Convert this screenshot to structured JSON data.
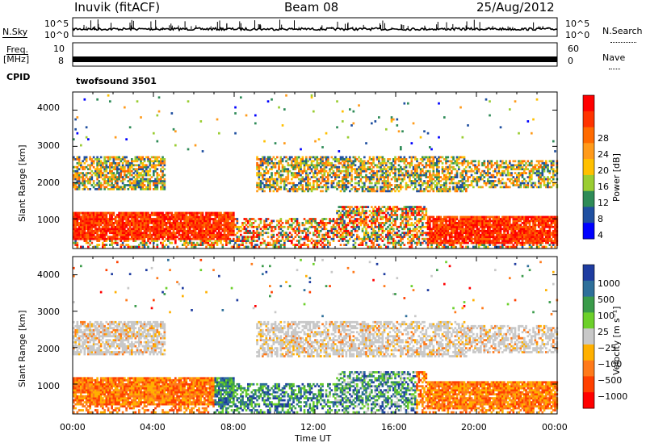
{
  "header": {
    "station": "Inuvik (fitACF)",
    "beam": "Beam 08",
    "date": "25/Aug/2012"
  },
  "side_labels": {
    "nsky": "N.Sky",
    "freq": "Freq.",
    "mhz": "[MHz]",
    "cpid": "CPID",
    "nsearch": "N.Search",
    "nave": "Nave",
    "program": "twofsound 3501"
  },
  "noise_axis": {
    "left_top": "10^5",
    "left_bottom": "10^0",
    "right_top": "10^5",
    "right_bottom": "10^0"
  },
  "freq_axis": {
    "left": [
      "10",
      "8"
    ],
    "right": [
      "60",
      "0"
    ]
  },
  "panels": {
    "ylabel": "Slant Range [km]",
    "yticks": [
      "4000",
      "3000",
      "2000",
      "1000"
    ],
    "xticks": [
      "00:00",
      "04:00",
      "08:00",
      "12:00",
      "16:00",
      "20:00",
      "00:00"
    ],
    "xlabel": "Time UT"
  },
  "power_bar": {
    "label": "Power [dB]",
    "ticks": [
      "28",
      "24",
      "20",
      "16",
      "12",
      "8",
      "4"
    ],
    "colors": [
      "#ff0000",
      "#ff3300",
      "#ff6a00",
      "#ff9a1a",
      "#ffc000",
      "#9acd32",
      "#2e8b57",
      "#1f4fa0",
      "#0000ff"
    ]
  },
  "velocity_bar": {
    "label": "Velocity [m s⁻¹]",
    "ticks": [
      "1000",
      "500",
      "100",
      "25",
      "−25",
      "−100",
      "−500",
      "−1000"
    ],
    "colors": [
      "#1e3ca0",
      "#2e6f9a",
      "#3a9b4a",
      "#6cd02a",
      "#c8c8c8",
      "#ffb000",
      "#ff7a1a",
      "#ff4000",
      "#ff0000"
    ]
  },
  "chart_data": [
    {
      "type": "line",
      "title": "Inuvik (fitACF) Beam 08 25/Aug/2012",
      "series": [
        {
          "name": "N.Sky"
        },
        {
          "name": "N.Search"
        }
      ],
      "ylim": [
        1,
        100000
      ],
      "x": [
        "00:00",
        "04:00",
        "08:00",
        "12:00",
        "16:00",
        "20:00",
        "00:00"
      ]
    },
    {
      "type": "line",
      "series": [
        {
          "name": "Freq. [MHz]"
        },
        {
          "name": "Nave"
        }
      ],
      "ylim_left": [
        8,
        10
      ],
      "ylim_right": [
        0,
        60
      ]
    },
    {
      "type": "heatmap",
      "title": "Power [dB]",
      "xlabel": "Time UT",
      "ylabel": "Slant Range [km]",
      "xlim": [
        "00:00",
        "24:00"
      ],
      "ylim": [
        180,
        4500
      ],
      "colorbar_ticks": [
        4,
        8,
        12,
        16,
        20,
        24,
        28
      ],
      "bands": [
        {
          "range_km": [
            400,
            1100
          ],
          "time_h": [
            0,
            8
          ],
          "power_db": 28
        },
        {
          "range_km": [
            1800,
            2700
          ],
          "time_h": [
            0,
            4
          ],
          "power_db": 16
        },
        {
          "range_km": [
            1700,
            2700
          ],
          "time_h": [
            9,
            19
          ],
          "power_db": 12
        },
        {
          "range_km": [
            300,
            1000
          ],
          "time_h": [
            17,
            24
          ],
          "power_db": 28
        }
      ]
    },
    {
      "type": "heatmap",
      "title": "Velocity [m s⁻¹]",
      "xlabel": "Time UT",
      "ylabel": "Slant Range [km]",
      "xlim": [
        "00:00",
        "24:00"
      ],
      "ylim": [
        180,
        4500
      ],
      "colorbar_ticks": [
        -1000,
        -500,
        -100,
        -25,
        25,
        100,
        500,
        1000
      ],
      "bands": [
        {
          "range_km": [
            400,
            1300
          ],
          "time_h": [
            0,
            7
          ],
          "velocity": -500
        },
        {
          "range_km": [
            1800,
            2500
          ],
          "time_h": [
            0,
            24
          ],
          "velocity": 0
        },
        {
          "range_km": [
            500,
            1400
          ],
          "time_h": [
            7,
            12
          ],
          "velocity": 800
        },
        {
          "range_km": [
            300,
            1000
          ],
          "time_h": [
            17,
            24
          ],
          "velocity": -500
        }
      ]
    }
  ]
}
